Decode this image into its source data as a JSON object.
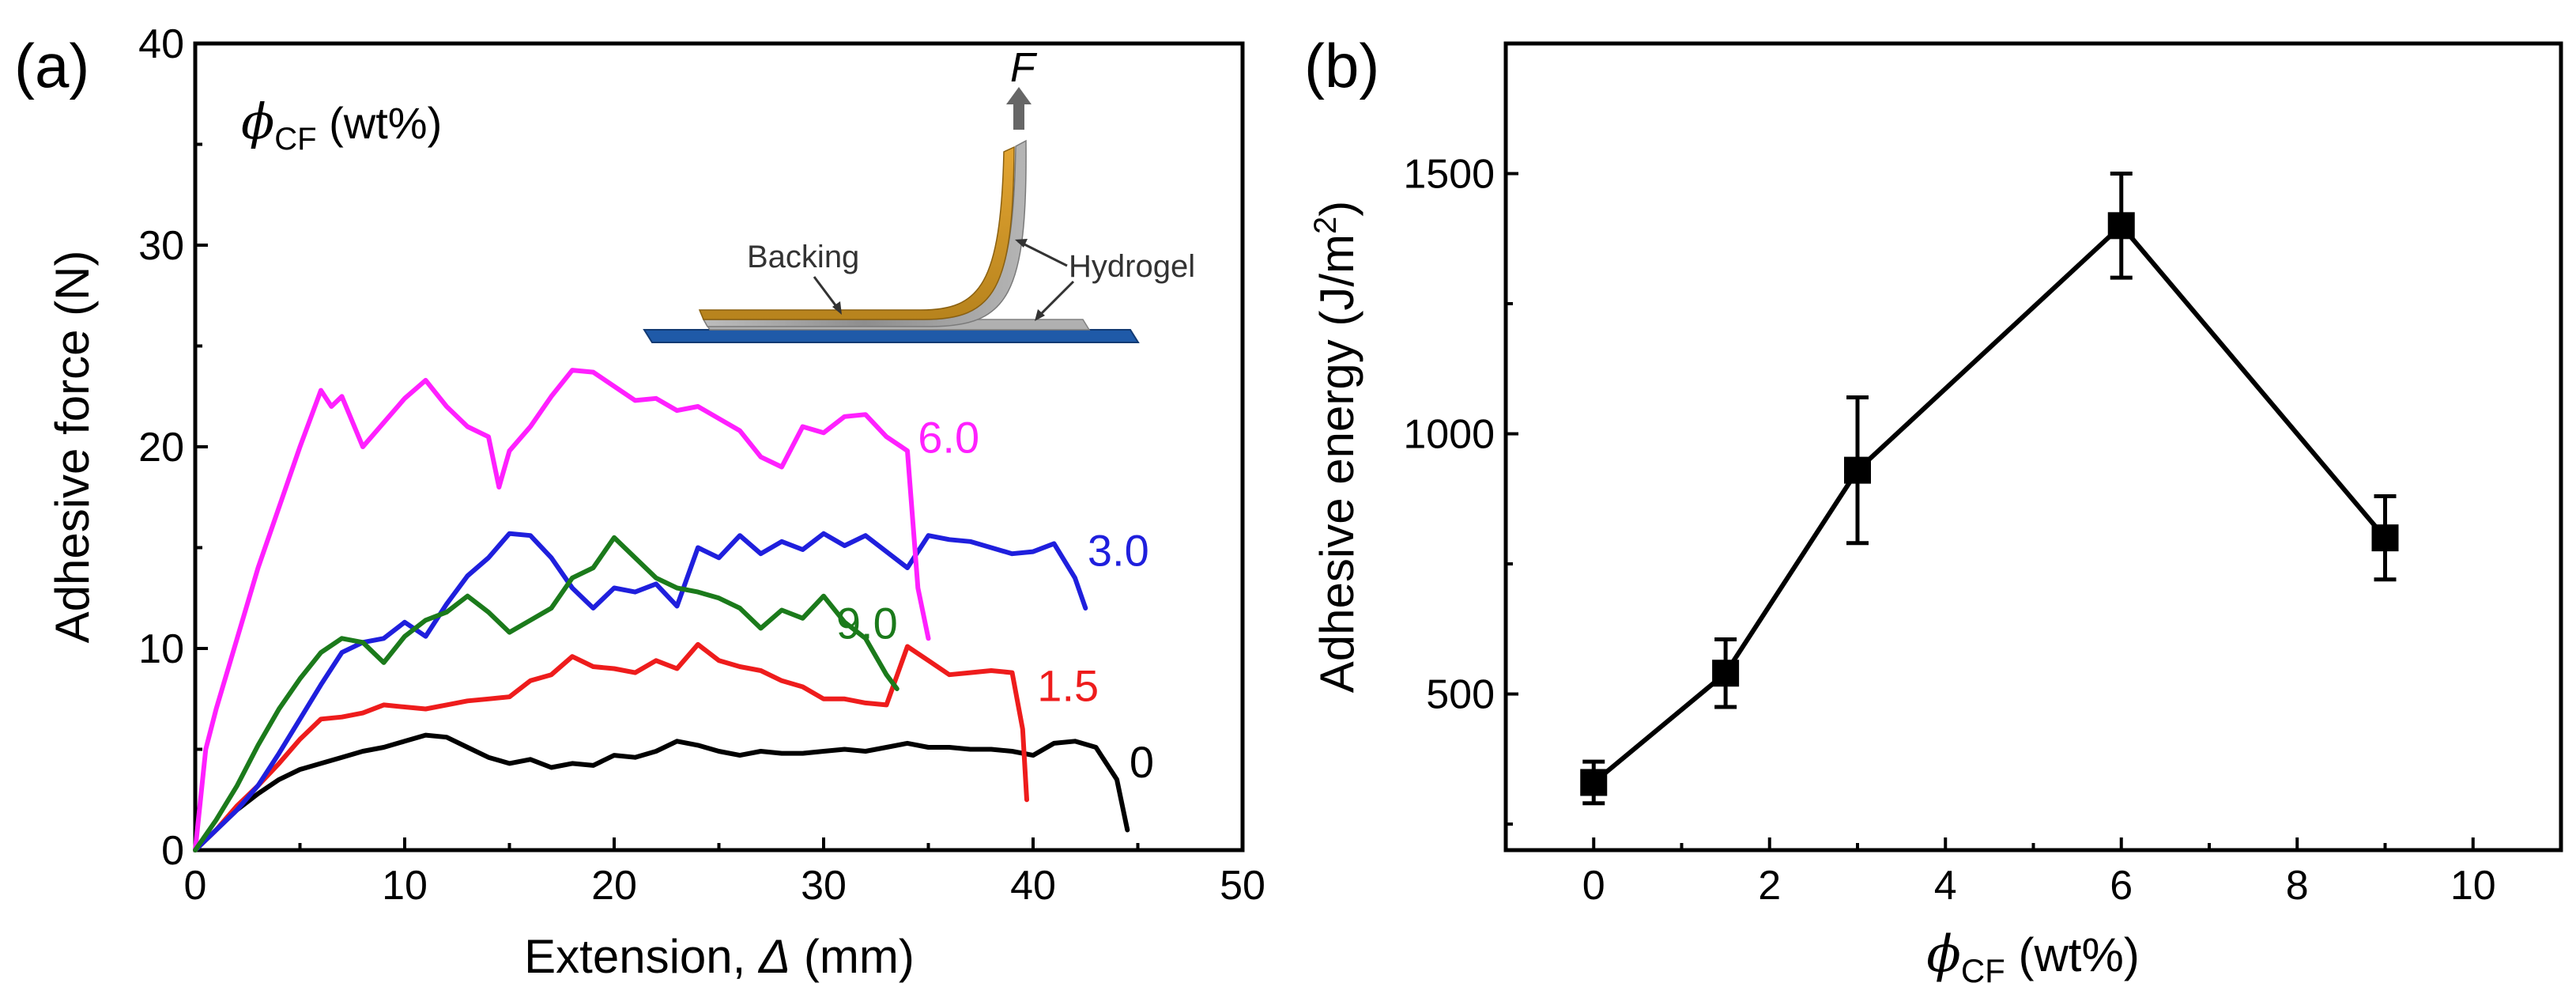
{
  "chart_data": [
    {
      "panel_label": "(a)",
      "type": "line",
      "xlabel_main": "Extension, ",
      "xlabel_symbol": "Δ",
      "xlabel_unit": " (mm)",
      "ylabel": "Adhesive force (N)",
      "xlim": [
        0,
        50
      ],
      "ylim": [
        0,
        40
      ],
      "x_ticks": [
        0,
        10,
        20,
        30,
        40,
        50
      ],
      "y_ticks": [
        0,
        10,
        20,
        30,
        40
      ],
      "legend_title_symbol": "ϕ",
      "legend_title_sub": "CF",
      "legend_title_unit": " (wt%)",
      "inset": {
        "force_label": "F",
        "backing_label": "Backing",
        "hydrogel_label": "Hydrogel"
      },
      "series": [
        {
          "name": "0",
          "color": "#000000",
          "points": [
            [
              0,
              0
            ],
            [
              1,
              1
            ],
            [
              2,
              2
            ],
            [
              3,
              2.8
            ],
            [
              4,
              3.5
            ],
            [
              5,
              4
            ],
            [
              6,
              4.3
            ],
            [
              7,
              4.6
            ],
            [
              8,
              4.9
            ],
            [
              9,
              5.1
            ],
            [
              10,
              5.4
            ],
            [
              11,
              5.7
            ],
            [
              12,
              5.6
            ],
            [
              13,
              5.1
            ],
            [
              14,
              4.6
            ],
            [
              15,
              4.3
            ],
            [
              16,
              4.5
            ],
            [
              17,
              4.1
            ],
            [
              18,
              4.3
            ],
            [
              19,
              4.2
            ],
            [
              20,
              4.7
            ],
            [
              21,
              4.6
            ],
            [
              22,
              4.9
            ],
            [
              23,
              5.4
            ],
            [
              24,
              5.2
            ],
            [
              25,
              4.9
            ],
            [
              26,
              4.7
            ],
            [
              27,
              4.9
            ],
            [
              28,
              4.8
            ],
            [
              29,
              4.8
            ],
            [
              30,
              4.9
            ],
            [
              31,
              5
            ],
            [
              32,
              4.9
            ],
            [
              33,
              5.1
            ],
            [
              34,
              5.3
            ],
            [
              35,
              5.1
            ],
            [
              36,
              5.1
            ],
            [
              37,
              5
            ],
            [
              38,
              5
            ],
            [
              39,
              4.9
            ],
            [
              40,
              4.7
            ],
            [
              41,
              5.3
            ],
            [
              42,
              5.4
            ],
            [
              43,
              5.1
            ],
            [
              44,
              3.5
            ],
            [
              44.5,
              1
            ]
          ]
        },
        {
          "name": "1.5",
          "color": "#ee1c1c",
          "points": [
            [
              0,
              0
            ],
            [
              1,
              1
            ],
            [
              2,
              2.2
            ],
            [
              3,
              3.2
            ],
            [
              4,
              4.3
            ],
            [
              5,
              5.5
            ],
            [
              6,
              6.5
            ],
            [
              7,
              6.6
            ],
            [
              8,
              6.8
            ],
            [
              9,
              7.2
            ],
            [
              10,
              7.1
            ],
            [
              11,
              7
            ],
            [
              12,
              7.2
            ],
            [
              13,
              7.4
            ],
            [
              14,
              7.5
            ],
            [
              15,
              7.6
            ],
            [
              16,
              8.4
            ],
            [
              17,
              8.7
            ],
            [
              18,
              9.6
            ],
            [
              19,
              9.1
            ],
            [
              20,
              9
            ],
            [
              21,
              8.8
            ],
            [
              22,
              9.4
            ],
            [
              23,
              9
            ],
            [
              24,
              10.2
            ],
            [
              25,
              9.4
            ],
            [
              26,
              9.1
            ],
            [
              27,
              8.9
            ],
            [
              28,
              8.4
            ],
            [
              29,
              8.1
            ],
            [
              30,
              7.5
            ],
            [
              31,
              7.5
            ],
            [
              32,
              7.3
            ],
            [
              33,
              7.2
            ],
            [
              34,
              10.1
            ],
            [
              35,
              9.4
            ],
            [
              36,
              8.7
            ],
            [
              37,
              8.8
            ],
            [
              38,
              8.9
            ],
            [
              39,
              8.8
            ],
            [
              39.5,
              6
            ],
            [
              39.7,
              2.5
            ]
          ]
        },
        {
          "name": "3.0",
          "color": "#1f1fdd",
          "points": [
            [
              0,
              0
            ],
            [
              1,
              1
            ],
            [
              2,
              2
            ],
            [
              3,
              3.2
            ],
            [
              4,
              4.8
            ],
            [
              5,
              6.5
            ],
            [
              6,
              8.2
            ],
            [
              7,
              9.8
            ],
            [
              8,
              10.3
            ],
            [
              9,
              10.5
            ],
            [
              10,
              11.3
            ],
            [
              11,
              10.6
            ],
            [
              12,
              12.2
            ],
            [
              13,
              13.6
            ],
            [
              14,
              14.5
            ],
            [
              15,
              15.7
            ],
            [
              16,
              15.6
            ],
            [
              17,
              14.5
            ],
            [
              18,
              13
            ],
            [
              19,
              12
            ],
            [
              20,
              13
            ],
            [
              21,
              12.8
            ],
            [
              22,
              13.2
            ],
            [
              23,
              12.1
            ],
            [
              24,
              15
            ],
            [
              25,
              14.5
            ],
            [
              26,
              15.6
            ],
            [
              27,
              14.7
            ],
            [
              28,
              15.3
            ],
            [
              29,
              14.9
            ],
            [
              30,
              15.7
            ],
            [
              31,
              15.1
            ],
            [
              32,
              15.6
            ],
            [
              33,
              14.8
            ],
            [
              34,
              14
            ],
            [
              35,
              15.6
            ],
            [
              36,
              15.4
            ],
            [
              37,
              15.3
            ],
            [
              38,
              15
            ],
            [
              39,
              14.7
            ],
            [
              40,
              14.8
            ],
            [
              41,
              15.2
            ],
            [
              42,
              13.5
            ],
            [
              42.5,
              12
            ]
          ]
        },
        {
          "name": "6.0",
          "color": "#ff20ff",
          "points": [
            [
              0,
              0
            ],
            [
              0.5,
              5
            ],
            [
              1,
              7
            ],
            [
              2,
              10.5
            ],
            [
              3,
              14
            ],
            [
              4,
              17
            ],
            [
              5,
              20
            ],
            [
              6,
              22.8
            ],
            [
              6.5,
              22
            ],
            [
              7,
              22.5
            ],
            [
              8,
              20
            ],
            [
              9,
              21.2
            ],
            [
              10,
              22.4
            ],
            [
              11,
              23.3
            ],
            [
              12,
              22
            ],
            [
              13,
              21
            ],
            [
              14,
              20.5
            ],
            [
              14.5,
              18
            ],
            [
              15,
              19.8
            ],
            [
              16,
              21
            ],
            [
              17,
              22.5
            ],
            [
              18,
              23.8
            ],
            [
              19,
              23.7
            ],
            [
              20,
              23
            ],
            [
              21,
              22.3
            ],
            [
              22,
              22.4
            ],
            [
              23,
              21.8
            ],
            [
              24,
              22
            ],
            [
              25,
              21.4
            ],
            [
              26,
              20.8
            ],
            [
              27,
              19.5
            ],
            [
              28,
              19
            ],
            [
              29,
              21
            ],
            [
              30,
              20.7
            ],
            [
              31,
              21.5
            ],
            [
              32,
              21.6
            ],
            [
              33,
              20.5
            ],
            [
              34,
              19.8
            ],
            [
              34.5,
              13
            ],
            [
              35,
              10.5
            ]
          ]
        },
        {
          "name": "9.0",
          "color": "#1b7a1b",
          "points": [
            [
              0,
              0
            ],
            [
              1,
              1.5
            ],
            [
              2,
              3.2
            ],
            [
              3,
              5.2
            ],
            [
              4,
              7
            ],
            [
              5,
              8.5
            ],
            [
              6,
              9.8
            ],
            [
              7,
              10.5
            ],
            [
              8,
              10.3
            ],
            [
              9,
              9.3
            ],
            [
              10,
              10.6
            ],
            [
              11,
              11.4
            ],
            [
              12,
              11.8
            ],
            [
              13,
              12.6
            ],
            [
              14,
              11.8
            ],
            [
              15,
              10.8
            ],
            [
              16,
              11.4
            ],
            [
              17,
              12
            ],
            [
              18,
              13.5
            ],
            [
              19,
              14
            ],
            [
              20,
              15.5
            ],
            [
              21,
              14.5
            ],
            [
              22,
              13.5
            ],
            [
              23,
              13
            ],
            [
              24,
              12.8
            ],
            [
              25,
              12.5
            ],
            [
              26,
              12
            ],
            [
              27,
              11
            ],
            [
              28,
              11.9
            ],
            [
              29,
              11.5
            ],
            [
              30,
              12.6
            ],
            [
              31,
              11.3
            ],
            [
              32,
              10.5
            ],
            [
              33,
              8.7
            ],
            [
              33.5,
              8
            ]
          ]
        }
      ],
      "series_labels": [
        "0",
        "1.5",
        "3.0",
        "6.0",
        "9.0"
      ]
    },
    {
      "panel_label": "(b)",
      "type": "line",
      "xlabel_symbol": "ϕ",
      "xlabel_sub": "CF",
      "xlabel_unit": " (wt%)",
      "ylabel_main": "Adhesive energy (J/m",
      "ylabel_sup": "2",
      "ylabel_close": ")",
      "xlim": [
        -1,
        11
      ],
      "ylim": [
        200,
        1750
      ],
      "x_ticks": [
        0,
        2,
        4,
        6,
        8,
        10
      ],
      "y_ticks": [
        500,
        1000,
        1500
      ],
      "x": [
        0,
        1.5,
        3,
        6,
        9
      ],
      "y": [
        330,
        540,
        930,
        1400,
        800
      ],
      "yerr": [
        40,
        65,
        140,
        100,
        80
      ],
      "color": "#000000"
    }
  ]
}
